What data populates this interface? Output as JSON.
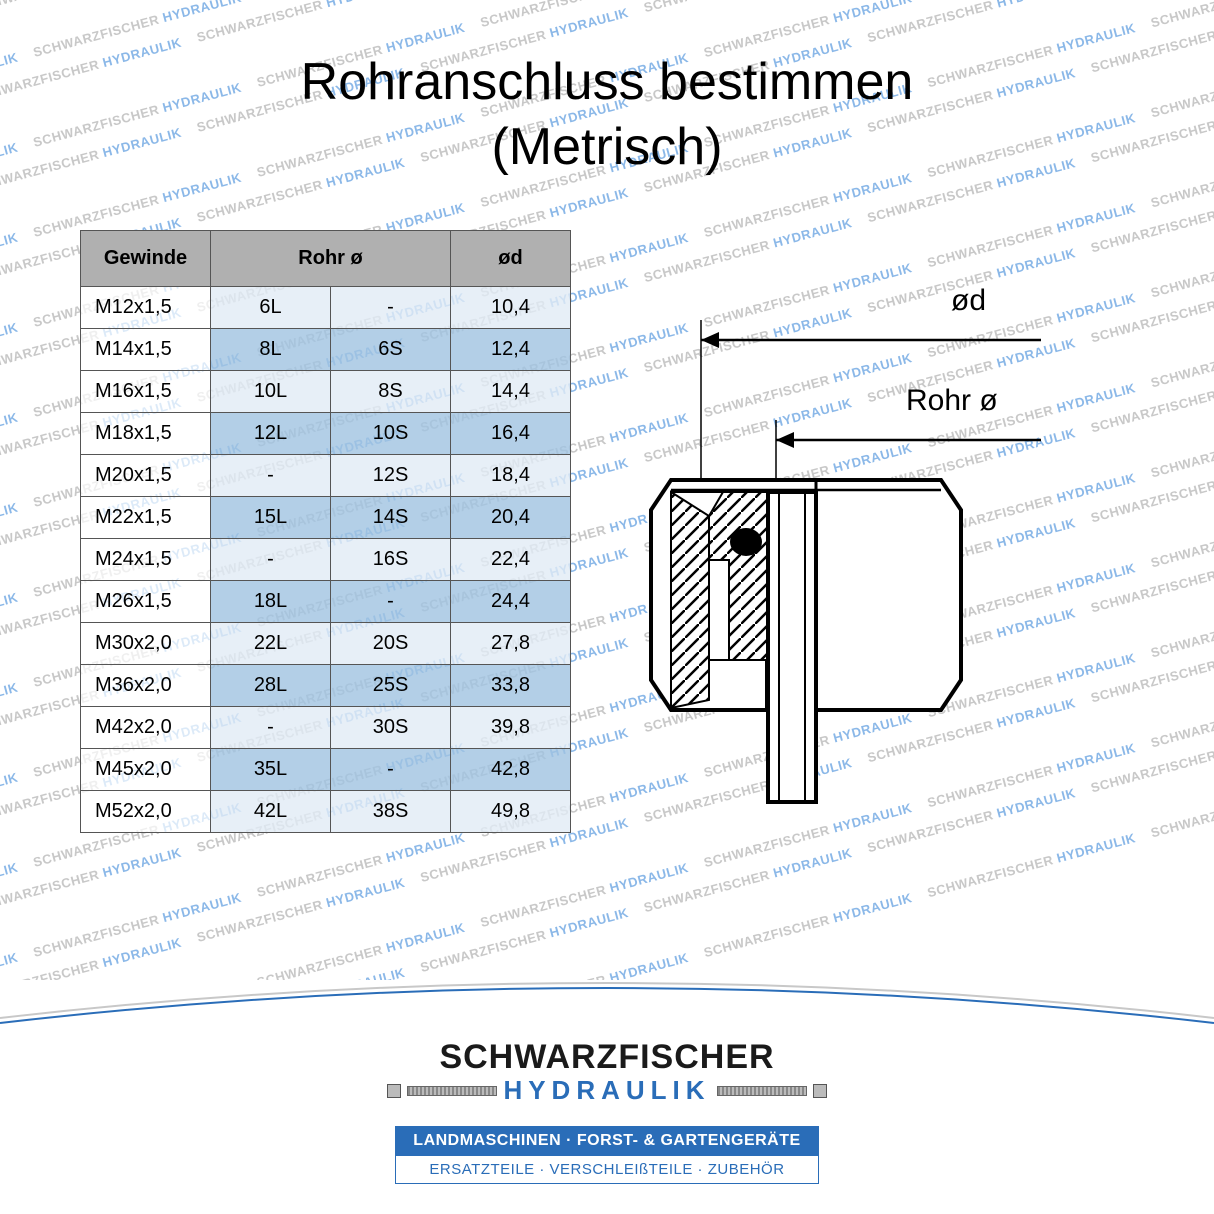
{
  "title_line1": "Rohranschluss bestimmen",
  "title_line2": "(Metrisch)",
  "watermark_text": "SCHWARZFISCHER HYDRAULIK",
  "columns": [
    "Gewinde",
    "Rohr ø",
    "ød"
  ],
  "rows": [
    {
      "gewinde": "M12x1,5",
      "rohr_l": "6L",
      "rohr_s": "-",
      "od": "10,4"
    },
    {
      "gewinde": "M14x1,5",
      "rohr_l": "8L",
      "rohr_s": "6S",
      "od": "12,4"
    },
    {
      "gewinde": "M16x1,5",
      "rohr_l": "10L",
      "rohr_s": "8S",
      "od": "14,4"
    },
    {
      "gewinde": "M18x1,5",
      "rohr_l": "12L",
      "rohr_s": "10S",
      "od": "16,4"
    },
    {
      "gewinde": "M20x1,5",
      "rohr_l": "-",
      "rohr_s": "12S",
      "od": "18,4"
    },
    {
      "gewinde": "M22x1,5",
      "rohr_l": "15L",
      "rohr_s": "14S",
      "od": "20,4"
    },
    {
      "gewinde": "M24x1,5",
      "rohr_l": "-",
      "rohr_s": "16S",
      "od": "22,4"
    },
    {
      "gewinde": "M26x1,5",
      "rohr_l": "18L",
      "rohr_s": "-",
      "od": "24,4"
    },
    {
      "gewinde": "M30x2,0",
      "rohr_l": "22L",
      "rohr_s": "20S",
      "od": "27,8"
    },
    {
      "gewinde": "M36x2,0",
      "rohr_l": "28L",
      "rohr_s": "25S",
      "od": "33,8"
    },
    {
      "gewinde": "M42x2,0",
      "rohr_l": "-",
      "rohr_s": "30S",
      "od": "39,8"
    },
    {
      "gewinde": "M45x2,0",
      "rohr_l": "35L",
      "rohr_s": "-",
      "od": "42,8"
    },
    {
      "gewinde": "M52x2,0",
      "rohr_l": "42L",
      "rohr_s": "38S",
      "od": "49,8"
    }
  ],
  "diagram_labels": {
    "od": "ød",
    "rohr": "Rohr ø"
  },
  "colors": {
    "header_bg": "#b0b0b0",
    "row_alt": "#a0c3e1",
    "row_nor": "#e1ebf5",
    "border": "#555555",
    "brand_blue": "#2a6db8",
    "wm_gray": "#c8c8c8",
    "wm_blue": "#8bb8e8"
  },
  "logo": {
    "name": "SCHWARZFISCHER",
    "sub": "HYDRAULIK"
  },
  "tagline": {
    "line1": "LANDMASCHINEN · FORST- & GARTENGERÄTE",
    "line2": "ERSATZTEILE · VERSCHLEIßTEILE · ZUBEHÖR"
  }
}
